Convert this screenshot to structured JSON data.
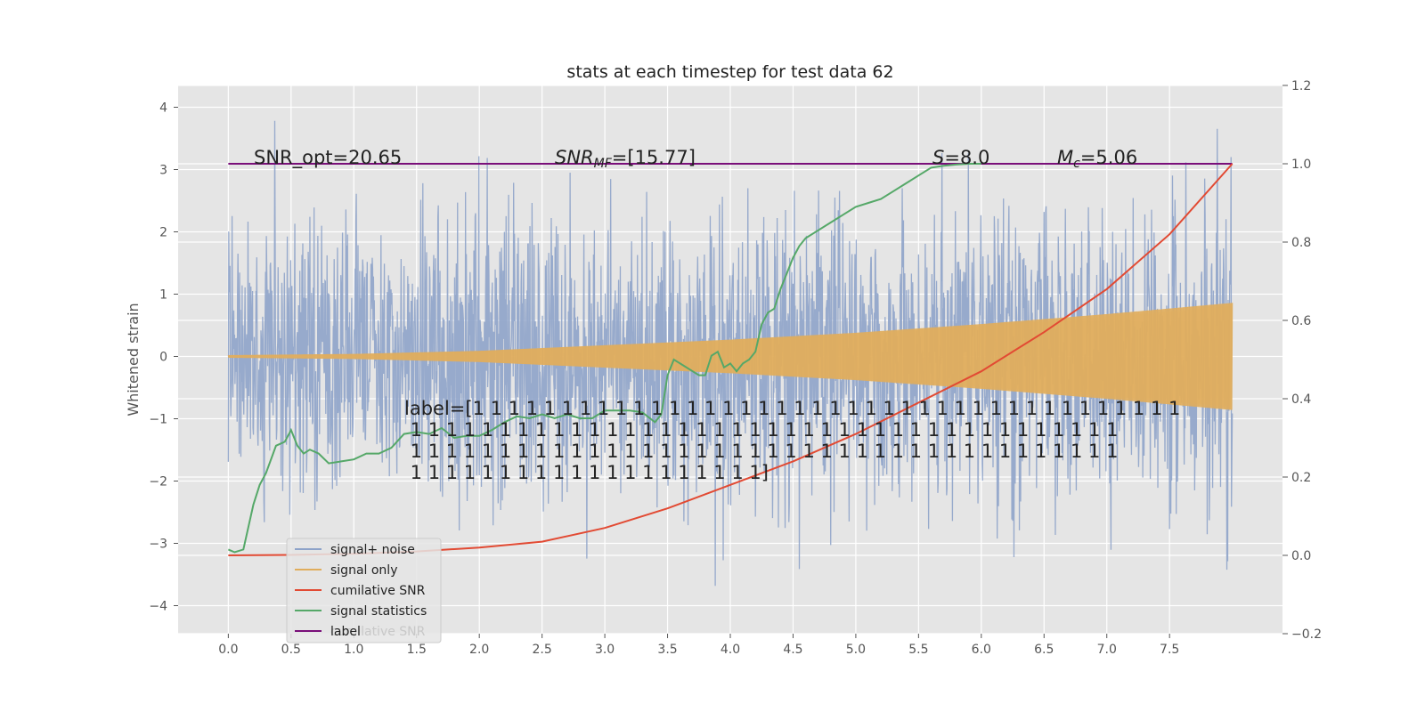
{
  "chart_data": {
    "type": "line",
    "title": "stats at each timestep for test data 62",
    "ylabel": "Whitened strain",
    "y2label": "",
    "xlim": [
      -0.4,
      8.4
    ],
    "ylim": [
      -4.45,
      4.35
    ],
    "y2lim": [
      -0.2,
      1.2
    ],
    "grid": true,
    "x_ticks": [
      "0.0",
      "0.5",
      "1.0",
      "1.5",
      "2.0",
      "2.5",
      "3.0",
      "3.5",
      "4.0",
      "4.5",
      "5.0",
      "5.5",
      "6.0",
      "6.5",
      "7.0",
      "7.5"
    ],
    "y_ticks": [
      "4",
      "3",
      "2",
      "1",
      "0",
      "−1",
      "−2",
      "−3",
      "−4"
    ],
    "y2_ticks": [
      "1.2",
      "1.0",
      "0.8",
      "0.6",
      "0.4",
      "0.2",
      "0.0",
      "−0.2"
    ],
    "legend": {
      "placement": "lower-left",
      "entries": [
        "signal+ noise",
        "signal only",
        "cumilative SNR",
        "signal statistics",
        "label"
      ],
      "ghost_text": "cumilative SNR"
    },
    "annotations": {
      "snr_opt": "SNR_opt=20.65",
      "snr_mf_sym": "SNR",
      "snr_mf_sub": "MF",
      "snr_mf_val": "=[15.77]",
      "s_sym": "S",
      "s_val": "=8.0",
      "mc_sym": "M",
      "mc_sub": "c",
      "mc_val": "=5.06",
      "label_lines": [
        "label=[1 1 1 1 1 1 1 1 1 1 1 1 1 1 1 1 1 1 1 1 1 1 1 1 1 1 1 1 1 1 1 1 1 1 1 1 1 1 1 1",
        " 1 1 1 1 1 1 1 1 1 1 1 1 1 1 1 1 1 1 1 1 1 1 1 1 1 1 1 1 1 1 1 1 1 1 1 1 1 1 1 1",
        " 1 1 1 1 1 1 1 1 1 1 1 1 1 1 1 1 1 1 1 1 1 1 1 1 1 1 1 1 1 1 1 1 1 1 1 1 1 1 1 1",
        " 1 1 1 1 1 1 1 1 1 1 1 1 1 1 1 1 1 1 1 1]"
      ]
    },
    "series": [
      {
        "name": "signal+ noise",
        "axis": "left",
        "color": "#8ea3c9",
        "envelope": "Gaussian noise band, mostly |y| < 2.5, spikes to about 3.9 / -4.1, x from 0.0 to 8.0"
      },
      {
        "name": "signal only",
        "axis": "left",
        "color": "#e0ad5c",
        "x": [
          0.0,
          1.0,
          2.0,
          3.0,
          4.0,
          5.0,
          6.0,
          7.0,
          8.0
        ],
        "amplitude": [
          0.02,
          0.04,
          0.09,
          0.18,
          0.27,
          0.38,
          0.52,
          0.68,
          0.86
        ]
      },
      {
        "name": "cumilative SNR",
        "axis": "right",
        "color": "#e24a33",
        "x": [
          0.0,
          0.5,
          1.0,
          1.5,
          2.0,
          2.5,
          3.0,
          3.5,
          4.0,
          4.5,
          5.0,
          5.5,
          6.0,
          6.5,
          7.0,
          7.5,
          8.0
        ],
        "y": [
          0.0,
          0.001,
          0.004,
          0.01,
          0.02,
          0.035,
          0.07,
          0.12,
          0.18,
          0.24,
          0.31,
          0.39,
          0.47,
          0.57,
          0.68,
          0.82,
          1.0
        ]
      },
      {
        "name": "signal statistics",
        "axis": "right",
        "color": "#55a868",
        "x": [
          0.0,
          0.05,
          0.12,
          0.2,
          0.25,
          0.3,
          0.38,
          0.45,
          0.5,
          0.55,
          0.6,
          0.65,
          0.72,
          0.8,
          0.9,
          1.0,
          1.1,
          1.2,
          1.3,
          1.4,
          1.5,
          1.6,
          1.7,
          1.8,
          1.9,
          2.0,
          2.1,
          2.2,
          2.3,
          2.4,
          2.5,
          2.6,
          2.7,
          2.8,
          2.9,
          3.0,
          3.1,
          3.2,
          3.3,
          3.4,
          3.45,
          3.5,
          3.55,
          3.6,
          3.7,
          3.75,
          3.8,
          3.85,
          3.9,
          3.95,
          4.0,
          4.05,
          4.1,
          4.15,
          4.2,
          4.25,
          4.3,
          4.35,
          4.4,
          4.45,
          4.5,
          4.55,
          4.6,
          4.7,
          4.8,
          4.9,
          5.0,
          5.1,
          5.2,
          5.3,
          5.4,
          5.5,
          5.6,
          5.7,
          5.8,
          5.9,
          6.0
        ],
        "y": [
          0.015,
          0.008,
          0.015,
          0.13,
          0.18,
          0.21,
          0.28,
          0.29,
          0.32,
          0.28,
          0.26,
          0.27,
          0.26,
          0.235,
          0.24,
          0.245,
          0.26,
          0.26,
          0.275,
          0.31,
          0.315,
          0.31,
          0.325,
          0.3,
          0.305,
          0.305,
          0.32,
          0.34,
          0.355,
          0.35,
          0.36,
          0.35,
          0.36,
          0.35,
          0.35,
          0.37,
          0.37,
          0.37,
          0.365,
          0.34,
          0.36,
          0.46,
          0.5,
          0.49,
          0.47,
          0.46,
          0.46,
          0.51,
          0.52,
          0.48,
          0.49,
          0.47,
          0.49,
          0.5,
          0.52,
          0.59,
          0.62,
          0.63,
          0.68,
          0.72,
          0.76,
          0.79,
          0.81,
          0.83,
          0.85,
          0.87,
          0.89,
          0.9,
          0.91,
          0.93,
          0.95,
          0.97,
          0.99,
          0.995,
          0.998,
          1.0,
          1.0
        ]
      },
      {
        "name": "label",
        "axis": "right",
        "color": "#7a0f7a",
        "x": [
          0.0,
          8.0
        ],
        "y": [
          1.0,
          1.0
        ]
      }
    ]
  }
}
